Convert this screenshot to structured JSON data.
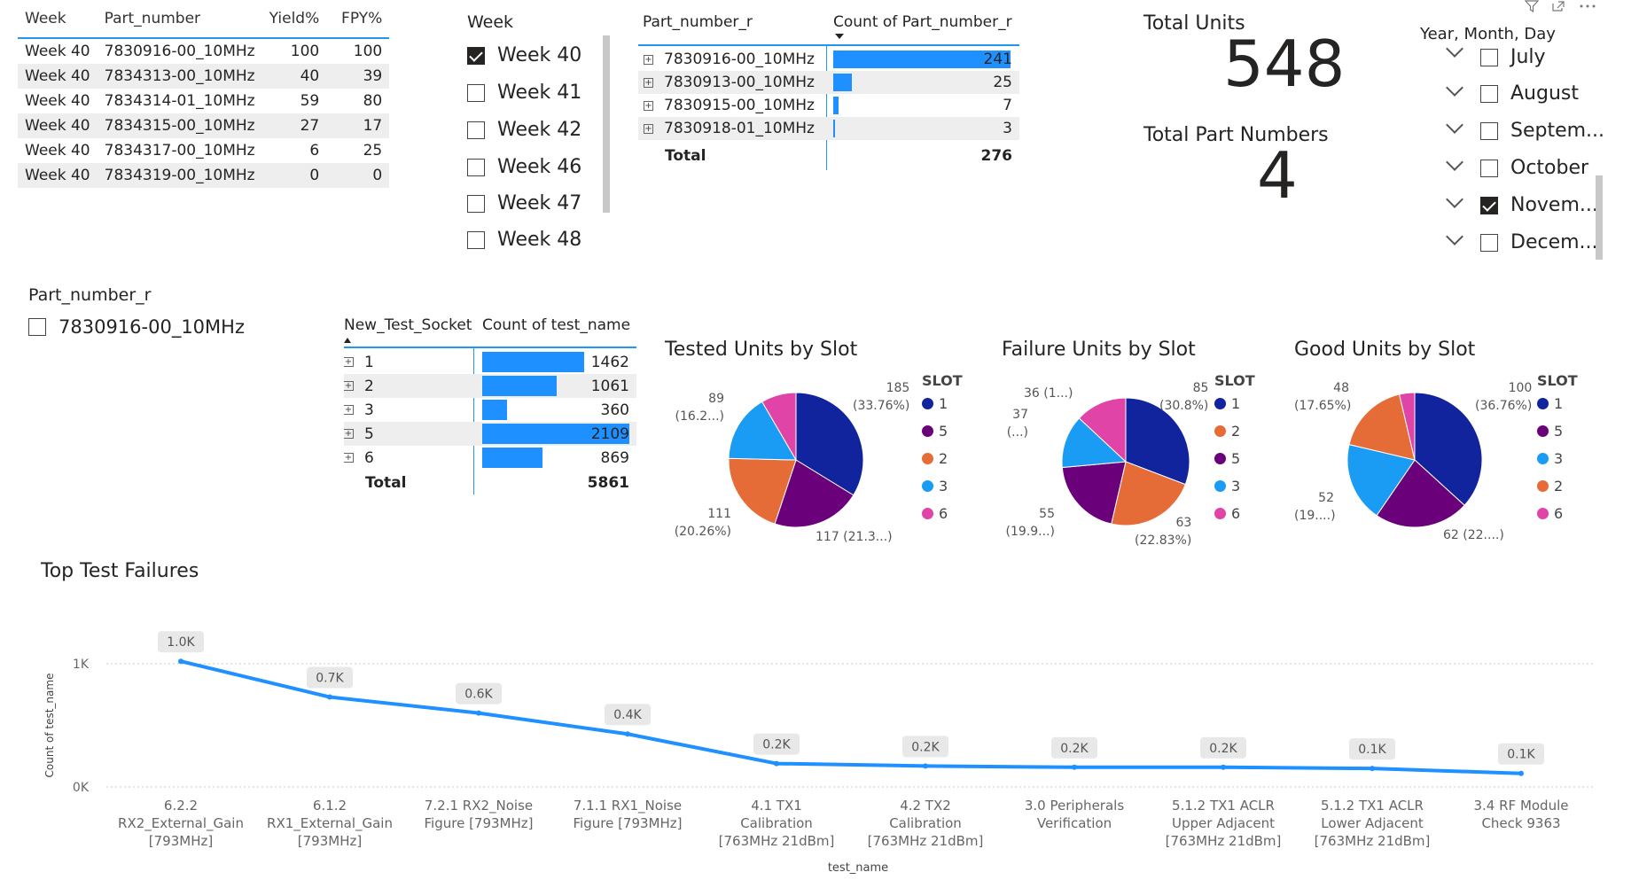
{
  "colors": {
    "accent": "#1e90ff",
    "slot1": "#12239e",
    "slot2": "#e66c37",
    "slot3": "#1a9bf4",
    "slot5": "#6b007b",
    "slot6": "#e044a7"
  },
  "header_icons": [
    "filter-icon",
    "focus-mode-icon",
    "more-options-icon"
  ],
  "yield_table": {
    "headers": {
      "week": "Week",
      "part": "Part_number",
      "yield": "Yield%",
      "fpy": "FPY%"
    },
    "rows": [
      {
        "week": "Week 40",
        "part": "7830916-00_10MHz",
        "yield": "100",
        "fpy": "100"
      },
      {
        "week": "Week 40",
        "part": "7834313-00_10MHz",
        "yield": "40",
        "fpy": "39"
      },
      {
        "week": "Week 40",
        "part": "7834314-01_10MHz",
        "yield": "59",
        "fpy": "80"
      },
      {
        "week": "Week 40",
        "part": "7834315-00_10MHz",
        "yield": "27",
        "fpy": "17"
      },
      {
        "week": "Week 40",
        "part": "7834317-00_10MHz",
        "yield": "6",
        "fpy": "25"
      },
      {
        "week": "Week 40",
        "part": "7834319-00_10MHz",
        "yield": "0",
        "fpy": "0"
      }
    ]
  },
  "week_slicer": {
    "title": "Week",
    "items": [
      {
        "label": "Week 40",
        "checked": true
      },
      {
        "label": "Week 41",
        "checked": false
      },
      {
        "label": "Week 42",
        "checked": false
      },
      {
        "label": "Week 46",
        "checked": false
      },
      {
        "label": "Week 47",
        "checked": false
      },
      {
        "label": "Week 48",
        "checked": false
      }
    ]
  },
  "part_count_table": {
    "headers": {
      "part": "Part_number_r",
      "count": "Count of Part_number_r"
    },
    "rows": [
      {
        "part": "7830916-00_10MHz",
        "count": "241",
        "value": 241
      },
      {
        "part": "7830913-00_10MHz",
        "count": "25",
        "value": 25
      },
      {
        "part": "7830915-00_10MHz",
        "count": "7",
        "value": 7
      },
      {
        "part": "7830918-01_10MHz",
        "count": "3",
        "value": 3
      }
    ],
    "total_label": "Total",
    "total": "276"
  },
  "kpis": {
    "total_units_label": "Total Units",
    "total_units": "548",
    "total_parts_label": "Total Part Numbers",
    "total_parts": "4"
  },
  "date_slicer": {
    "title": "Year, Month, Day",
    "items": [
      {
        "label": "July",
        "checked": false
      },
      {
        "label": "August",
        "checked": false
      },
      {
        "label": "Septem...",
        "checked": false
      },
      {
        "label": "October",
        "checked": false
      },
      {
        "label": "Novem...",
        "checked": true
      },
      {
        "label": "Decem...",
        "checked": false
      }
    ]
  },
  "part_slicer": {
    "title": "Part_number_r",
    "item": "7830916-00_10MHz",
    "checked": false
  },
  "socket_table": {
    "headers": {
      "socket": "New_Test_Socket",
      "count": "Count of test_name"
    },
    "rows": [
      {
        "socket": "1",
        "count": "1462",
        "value": 1462
      },
      {
        "socket": "2",
        "count": "1061",
        "value": 1061
      },
      {
        "socket": "3",
        "count": "360",
        "value": 360
      },
      {
        "socket": "5",
        "count": "2109",
        "value": 2109
      },
      {
        "socket": "6",
        "count": "869",
        "value": 869
      }
    ],
    "total_label": "Total",
    "total": "5861"
  },
  "chart_data": [
    {
      "type": "pie",
      "title": "Tested Units by Slot",
      "legend_title": "SLOT",
      "legend": [
        "1",
        "5",
        "2",
        "3",
        "6"
      ],
      "slices": [
        {
          "slot": "1",
          "value": 185
        },
        {
          "slot": "5",
          "value": 117
        },
        {
          "slot": "2",
          "value": 111
        },
        {
          "slot": "3",
          "value": 89
        },
        {
          "slot": "6",
          "value": 46
        }
      ],
      "labels": {
        "1": "185\n(33.76%)",
        "5": "117 (21.3...)",
        "2": "111\n(20.26%)",
        "3": "89\n(16.2...)"
      }
    },
    {
      "type": "pie",
      "title": "Failure Units by Slot",
      "legend_title": "SLOT",
      "legend": [
        "1",
        "2",
        "5",
        "3",
        "6"
      ],
      "slices": [
        {
          "slot": "1",
          "value": 85
        },
        {
          "slot": "2",
          "value": 63
        },
        {
          "slot": "5",
          "value": 55
        },
        {
          "slot": "3",
          "value": 37
        },
        {
          "slot": "6",
          "value": 36
        }
      ],
      "labels": {
        "1": "85\n(30.8%)",
        "2": "63\n(22.83%)",
        "5": "55\n(19.9...)",
        "3": "37\n(...)",
        "6": "36 (1...)"
      }
    },
    {
      "type": "pie",
      "title": "Good Units by Slot",
      "legend_title": "SLOT",
      "legend": [
        "1",
        "5",
        "3",
        "2",
        "6"
      ],
      "slices": [
        {
          "slot": "1",
          "value": 100
        },
        {
          "slot": "5",
          "value": 62
        },
        {
          "slot": "3",
          "value": 52
        },
        {
          "slot": "2",
          "value": 48
        },
        {
          "slot": "6",
          "value": 10
        }
      ],
      "labels": {
        "1": "100\n(36.76%)",
        "5": "62 (22....)",
        "3": "52\n(19....)",
        "2": "48\n(17.65%)"
      }
    },
    {
      "type": "line",
      "title": "Top Test Failures",
      "xlabel": "test_name",
      "ylabel": "Count of test_name",
      "yticks": [
        "0K",
        "1K"
      ],
      "ylim": [
        0,
        1200
      ],
      "categories": [
        "6.2.2\nRX2_External_Gain\n[793MHz]",
        "6.1.2\nRX1_External_Gain\n[793MHz]",
        "7.2.1 RX2_Noise\nFigure [793MHz]",
        "7.1.1 RX1_Noise\nFigure [793MHz]",
        "4.1 TX1\nCalibration\n[763MHz 21dBm]",
        "4.2 TX2\nCalibration\n[763MHz 21dBm]",
        "3.0 Peripherals\nVerification",
        "5.1.2 TX1 ACLR\nUpper Adjacent\n[763MHz 21dBm]",
        "5.1.2 TX1 ACLR\nLower Adjacent\n[763MHz 21dBm]",
        "3.4 RF Module\nCheck 9363"
      ],
      "values": [
        1020,
        730,
        600,
        430,
        190,
        170,
        160,
        160,
        150,
        110
      ],
      "data_labels": [
        "1.0K",
        "0.7K",
        "0.6K",
        "0.4K",
        "0.2K",
        "0.2K",
        "0.2K",
        "0.2K",
        "0.1K",
        "0.1K"
      ]
    }
  ]
}
